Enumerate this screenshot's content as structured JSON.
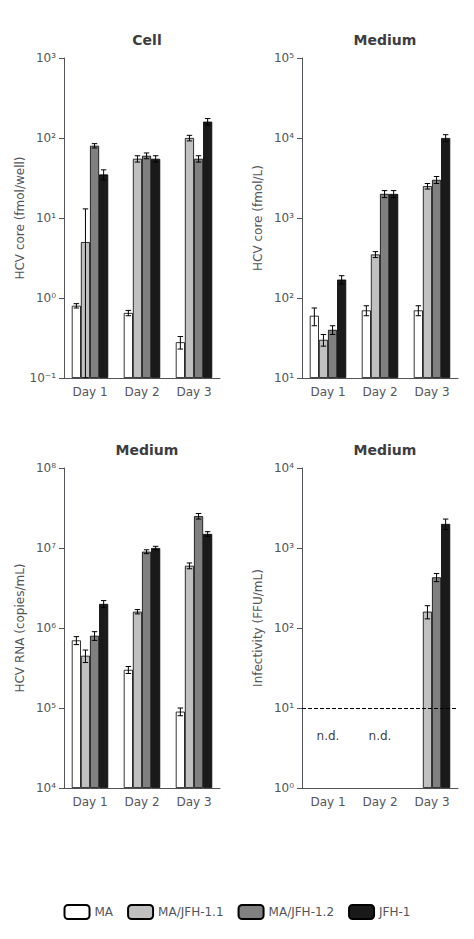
{
  "chart_data": [
    {
      "type": "bar",
      "title": "Cell",
      "ylabel": "HCV core (fmol/well)",
      "categories": [
        "Day 1",
        "Day 2",
        "Day 3"
      ],
      "series": [
        {
          "name": "MA",
          "color": "#ffffff",
          "values": [
            0.8,
            0.65,
            0.28
          ],
          "errors": [
            0.05,
            0.05,
            0.05
          ]
        },
        {
          "name": "MA/JFH-1.1",
          "color": "#c0c0c0",
          "values": [
            5.0,
            55.0,
            100.0
          ],
          "errors": [
            8.0,
            5.0,
            8.0
          ]
        },
        {
          "name": "MA/JFH-1.2",
          "color": "#808080",
          "values": [
            80.0,
            60.0,
            55.0
          ],
          "errors": [
            5.0,
            5.0,
            5.0
          ]
        },
        {
          "name": "JFH-1",
          "color": "#1a1a1a",
          "values": [
            35.0,
            55.0,
            160.0
          ],
          "errors": [
            5.0,
            5.0,
            15.0
          ]
        }
      ],
      "ylim": [
        0.1,
        1000
      ],
      "yticks": [
        {
          "value": 0.1,
          "label": "10⁻¹"
        },
        {
          "value": 1,
          "label": "10⁰"
        },
        {
          "value": 10,
          "label": "10¹"
        },
        {
          "value": 100,
          "label": "10²"
        },
        {
          "value": 1000,
          "label": "10³"
        }
      ],
      "log": "y",
      "grid": false,
      "legend": "bottom"
    },
    {
      "type": "bar",
      "title": "Medium",
      "ylabel": "HCV core (fmol/L)",
      "categories": [
        "Day 1",
        "Day 2",
        "Day 3"
      ],
      "series": [
        {
          "name": "MA",
          "color": "#ffffff",
          "values": [
            60.0,
            70.0,
            70.0
          ],
          "errors": [
            15.0,
            10.0,
            10.0
          ]
        },
        {
          "name": "MA/JFH-1.1",
          "color": "#c0c0c0",
          "values": [
            30.0,
            350.0,
            2500.0
          ],
          "errors": [
            5.0,
            30.0,
            200.0
          ]
        },
        {
          "name": "MA/JFH-1.2",
          "color": "#808080",
          "values": [
            40.0,
            2000.0,
            3000.0
          ],
          "errors": [
            5.0,
            200.0,
            300.0
          ]
        },
        {
          "name": "JFH-1",
          "color": "#1a1a1a",
          "values": [
            170.0,
            2000.0,
            10000.0
          ],
          "errors": [
            20.0,
            200.0,
            1000.0
          ]
        }
      ],
      "ylim": [
        10,
        100000
      ],
      "yticks": [
        {
          "value": 10,
          "label": "10¹"
        },
        {
          "value": 100,
          "label": "10²"
        },
        {
          "value": 1000,
          "label": "10³"
        },
        {
          "value": 10000,
          "label": "10⁴"
        },
        {
          "value": 100000,
          "label": "10⁵"
        }
      ],
      "log": "y",
      "grid": false,
      "legend": "bottom"
    },
    {
      "type": "bar",
      "title": "Medium",
      "ylabel": "HCV RNA (copies/mL)",
      "categories": [
        "Day 1",
        "Day 2",
        "Day 3"
      ],
      "series": [
        {
          "name": "MA",
          "color": "#ffffff",
          "values": [
            700000,
            300000,
            90000
          ],
          "errors": [
            80000,
            30000,
            10000
          ]
        },
        {
          "name": "MA/JFH-1.1",
          "color": "#c0c0c0",
          "values": [
            450000,
            1600000,
            6000000
          ],
          "errors": [
            80000,
            100000,
            500000
          ]
        },
        {
          "name": "MA/JFH-1.2",
          "color": "#808080",
          "values": [
            800000,
            9000000,
            25000000
          ],
          "errors": [
            100000,
            500000,
            2000000
          ]
        },
        {
          "name": "JFH-1",
          "color": "#1a1a1a",
          "values": [
            2000000,
            10000000,
            15000000
          ],
          "errors": [
            200000,
            500000,
            1000000
          ]
        }
      ],
      "ylim": [
        10000,
        100000000
      ],
      "yticks": [
        {
          "value": 10000,
          "label": "10⁴"
        },
        {
          "value": 100000,
          "label": "10⁵"
        },
        {
          "value": 1000000,
          "label": "10⁶"
        },
        {
          "value": 10000000,
          "label": "10⁷"
        },
        {
          "value": 100000000,
          "label": "10⁸"
        }
      ],
      "log": "y",
      "grid": false,
      "legend": "bottom"
    },
    {
      "type": "bar",
      "title": "Medium",
      "ylabel": "Infectivity (FFU/mL)",
      "categories": [
        "Day 1",
        "Day 2",
        "Day 3"
      ],
      "series": [
        {
          "name": "MA",
          "color": "#ffffff",
          "values": [
            null,
            null,
            null
          ],
          "errors": [
            null,
            null,
            null
          ]
        },
        {
          "name": "MA/JFH-1.1",
          "color": "#c0c0c0",
          "values": [
            null,
            null,
            160.0
          ],
          "errors": [
            null,
            null,
            30.0
          ]
        },
        {
          "name": "MA/JFH-1.2",
          "color": "#808080",
          "values": [
            null,
            null,
            430.0
          ],
          "errors": [
            null,
            null,
            50.0
          ]
        },
        {
          "name": "JFH-1",
          "color": "#1a1a1a",
          "values": [
            null,
            null,
            2000.0
          ],
          "errors": [
            null,
            null,
            300.0
          ]
        }
      ],
      "ylim": [
        1,
        10000
      ],
      "yticks": [
        {
          "value": 1,
          "label": "10⁰"
        },
        {
          "value": 10,
          "label": "10¹"
        },
        {
          "value": 100,
          "label": "10²"
        },
        {
          "value": 1000,
          "label": "10³"
        },
        {
          "value": 10000,
          "label": "10⁴"
        }
      ],
      "reference_line": {
        "y": 10,
        "line_style": "dashed"
      },
      "annotations": [
        {
          "text": "n.d.",
          "x": "Day 1",
          "y": 4.5
        },
        {
          "text": "n.d.",
          "x": "Day 2",
          "y": 4.5
        }
      ],
      "log": "y",
      "grid": false,
      "legend": "bottom"
    }
  ]
}
